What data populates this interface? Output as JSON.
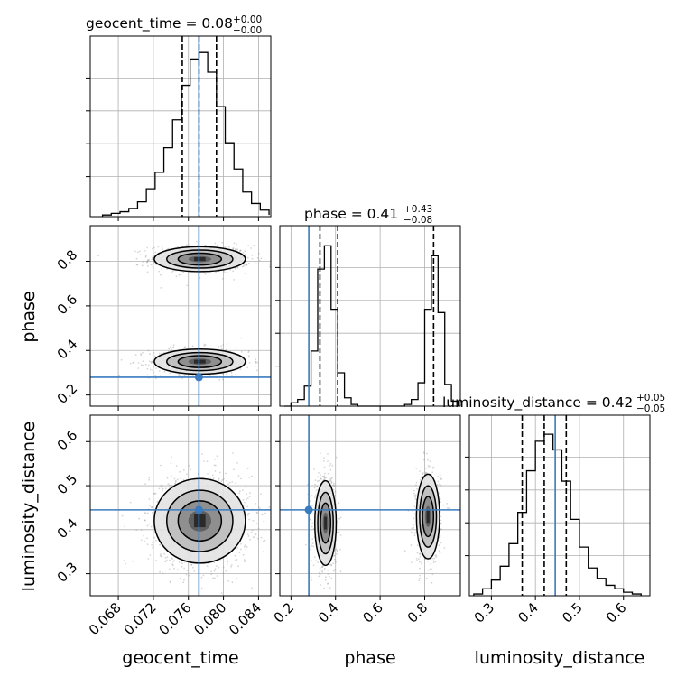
{
  "chart_data": {
    "type": "corner",
    "parameters": [
      "geocent_time",
      "phase",
      "luminosity_distance"
    ],
    "truths": [
      0.0772,
      0.28,
      0.445
    ],
    "colors": {
      "truth": "#3a7bbf",
      "hist": "#000000",
      "grid": "#b0b0b0",
      "scatter": "#8a8a8a"
    },
    "grid": true,
    "axes": {
      "geocent_time": {
        "range": [
          0.0648,
          0.0854
        ],
        "ticks": [
          0.068,
          0.072,
          0.076,
          0.08,
          0.084
        ],
        "tick_labels": [
          "0.068",
          "0.072",
          "0.076",
          "0.080",
          "0.084"
        ]
      },
      "phase": {
        "range": [
          0.15,
          0.96
        ],
        "ticks": [
          0.2,
          0.4,
          0.6,
          0.8
        ],
        "tick_labels": [
          "0.2",
          "0.4",
          "0.6",
          "0.8"
        ]
      },
      "luminosity_distance": {
        "range": [
          0.25,
          0.66
        ],
        "ticks": [
          0.3,
          0.4,
          0.5,
          0.6
        ],
        "tick_labels": [
          "0.3",
          "0.4",
          "0.5",
          "0.6"
        ]
      }
    },
    "diagonal": [
      {
        "param": "geocent_time",
        "title_main": "geocent_time = 0.08",
        "title_sup": "+0.00",
        "title_sub": "−0.00",
        "quantiles": [
          0.0753,
          0.0772,
          0.0792
        ],
        "bins": [
          0.0662,
          0.0672,
          0.0682,
          0.0692,
          0.0702,
          0.0712,
          0.0722,
          0.0732,
          0.0742,
          0.0752,
          0.0762,
          0.0772,
          0.0782,
          0.0792,
          0.0802,
          0.0812,
          0.0822,
          0.0832,
          0.0842,
          0.0852
        ],
        "counts": [
          1,
          2,
          3,
          5,
          9,
          17,
          27,
          42,
          59,
          80,
          96,
          100,
          88,
          67,
          45,
          29,
          15,
          8,
          4,
          1
        ],
        "ylim": [
          0,
          110
        ]
      },
      {
        "param": "phase",
        "title_main": "phase = 0.41",
        "title_sup": "+0.43",
        "title_sub": "−0.08",
        "quantiles": [
          0.33,
          0.41,
          0.84
        ],
        "bins": [
          0.17,
          0.2,
          0.23,
          0.26,
          0.29,
          0.32,
          0.35,
          0.38,
          0.41,
          0.44,
          0.47,
          0.5,
          0.53,
          0.56,
          0.59,
          0.62,
          0.65,
          0.68,
          0.71,
          0.74,
          0.77,
          0.8,
          0.83,
          0.86,
          0.89,
          0.92,
          0.95
        ],
        "counts": [
          0,
          2,
          4,
          12,
          33,
          82,
          96,
          58,
          20,
          5,
          1,
          0,
          0,
          0,
          0,
          0,
          0,
          0,
          1,
          4,
          14,
          58,
          90,
          56,
          13,
          3
        ],
        "ylim": [
          0,
          108
        ]
      },
      {
        "param": "luminosity_distance",
        "title_main": "luminosity_distance = 0.42",
        "title_sup": "+0.05",
        "title_sub": "−0.05",
        "quantiles": [
          0.37,
          0.42,
          0.47
        ],
        "bins": [
          0.26,
          0.28,
          0.3,
          0.32,
          0.34,
          0.36,
          0.38,
          0.4,
          0.42,
          0.44,
          0.46,
          0.48,
          0.5,
          0.52,
          0.54,
          0.56,
          0.58,
          0.6,
          0.62,
          0.64
        ],
        "counts": [
          1,
          4,
          9,
          17,
          30,
          48,
          72,
          89,
          93,
          84,
          66,
          44,
          28,
          16,
          10,
          6,
          4,
          2,
          1
        ],
        "ylim": [
          0,
          104
        ]
      }
    ],
    "pairs": [
      {
        "x": "geocent_time",
        "y": "phase",
        "blobs": [
          {
            "cx": 0.0773,
            "cy": 0.81,
            "sx": 0.0026,
            "sy": 0.028,
            "weight": 0.5
          },
          {
            "cx": 0.0773,
            "cy": 0.35,
            "sx": 0.0026,
            "sy": 0.028,
            "weight": 0.5
          }
        ]
      },
      {
        "x": "geocent_time",
        "y": "luminosity_distance",
        "blobs": [
          {
            "cx": 0.0773,
            "cy": 0.42,
            "sx": 0.0026,
            "sy": 0.048,
            "weight": 1
          }
        ]
      },
      {
        "x": "phase",
        "y": "luminosity_distance",
        "blobs": [
          {
            "cx": 0.355,
            "cy": 0.415,
            "sx": 0.024,
            "sy": 0.048,
            "weight": 0.5
          },
          {
            "cx": 0.815,
            "cy": 0.43,
            "sx": 0.026,
            "sy": 0.048,
            "weight": 0.5
          }
        ]
      }
    ],
    "axis_labels": {
      "bottom": [
        "geocent_time",
        "phase",
        "luminosity_distance"
      ],
      "left": [
        "phase",
        "luminosity_distance"
      ]
    }
  }
}
